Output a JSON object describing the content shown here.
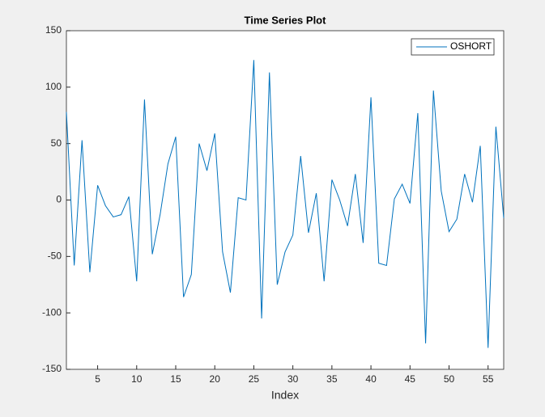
{
  "chart_data": {
    "type": "line",
    "title": "Time Series Plot",
    "xlabel": "Index",
    "x": [
      1,
      2,
      3,
      4,
      5,
      6,
      7,
      8,
      9,
      10,
      11,
      12,
      13,
      14,
      15,
      16,
      17,
      18,
      19,
      20,
      21,
      22,
      23,
      24,
      25,
      26,
      27,
      28,
      29,
      30,
      31,
      32,
      33,
      34,
      35,
      36,
      37,
      38,
      39,
      40,
      41,
      42,
      43,
      44,
      45,
      46,
      47,
      48,
      49,
      50,
      51,
      52,
      53,
      54,
      55,
      56,
      57
    ],
    "series": [
      {
        "name": "OSHORT",
        "color": "#0072bd",
        "values": [
          78,
          -58,
          53,
          -64,
          13,
          -5,
          -15,
          -13,
          3,
          -72,
          89,
          -48,
          -13,
          32,
          56,
          -86,
          -66,
          50,
          26,
          59,
          -46,
          -82,
          2,
          0,
          124,
          -105,
          113,
          -75,
          -46,
          -31,
          39,
          -29,
          6,
          -72,
          18,
          0,
          -23,
          23,
          -38,
          91,
          -56,
          -58,
          1,
          14,
          -3,
          77,
          -127,
          97,
          8,
          -28,
          -17,
          23,
          -2,
          48,
          -131,
          65,
          -16
        ]
      }
    ],
    "xlim": [
      1,
      57
    ],
    "xticks": [
      5,
      10,
      15,
      20,
      25,
      30,
      35,
      40,
      45,
      50,
      55
    ],
    "ylim": [
      -150,
      150
    ],
    "yticks": [
      -150,
      -100,
      -50,
      0,
      50,
      100,
      150
    ],
    "legend": "top-right"
  }
}
